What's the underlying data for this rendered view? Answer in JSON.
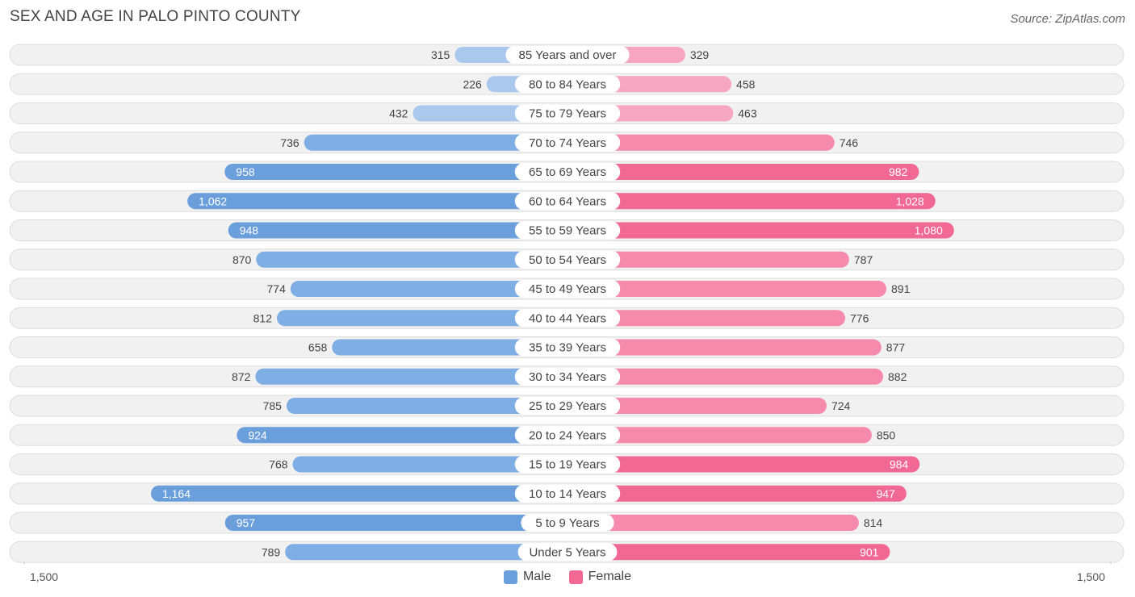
{
  "title": "SEX AND AGE IN PALO PINTO COUNTY",
  "source": "Source: ZipAtlas.com",
  "colors": {
    "male_light": "#a9c8ec",
    "male_dark": "#6a9fdc",
    "female_light": "#f7a6c1",
    "female_dark": "#f06893",
    "track": "#f1f1f1",
    "track_border": "#dddddd"
  },
  "chart_data": {
    "type": "bar",
    "orientation": "horizontal-diverging",
    "title": "SEX AND AGE IN PALO PINTO COUNTY",
    "categories": [
      "85 Years and over",
      "80 to 84 Years",
      "75 to 79 Years",
      "70 to 74 Years",
      "65 to 69 Years",
      "60 to 64 Years",
      "55 to 59 Years",
      "50 to 54 Years",
      "45 to 49 Years",
      "40 to 44 Years",
      "35 to 39 Years",
      "30 to 34 Years",
      "25 to 29 Years",
      "20 to 24 Years",
      "15 to 19 Years",
      "10 to 14 Years",
      "5 to 9 Years",
      "Under 5 Years"
    ],
    "series": [
      {
        "name": "Male",
        "values": [
          315,
          226,
          432,
          736,
          958,
          1062,
          948,
          870,
          774,
          812,
          658,
          872,
          785,
          924,
          768,
          1164,
          957,
          789
        ]
      },
      {
        "name": "Female",
        "values": [
          329,
          458,
          463,
          746,
          982,
          1028,
          1080,
          787,
          891,
          776,
          877,
          882,
          724,
          850,
          984,
          947,
          814,
          901
        ]
      }
    ],
    "xlim": [
      0,
      1500
    ],
    "axis_labels": {
      "left": "1,500",
      "right": "1,500"
    },
    "legend": [
      "Male",
      "Female"
    ]
  }
}
